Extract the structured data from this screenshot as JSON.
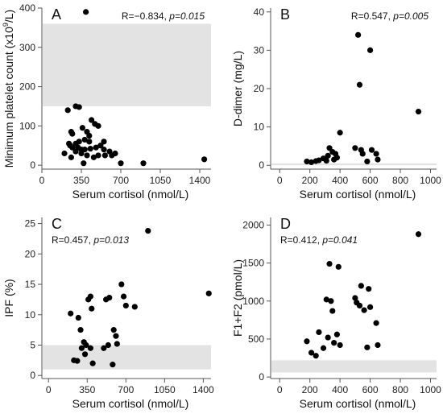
{
  "chart_data": [
    {
      "panel_label": "A",
      "type": "scatter",
      "ylabel_main": "Minimum platelet count (x10",
      "ylabel_sup": "9",
      "ylabel_tail": "/L)",
      "xlabel": "Serum cortisol (nmol/L)",
      "stat_r": "R=−0.834, ",
      "stat_p": "p=0.015",
      "xlim": [
        0,
        1500
      ],
      "ylim": [
        -10,
        400
      ],
      "xticks": [
        0,
        350,
        700,
        1050,
        1400
      ],
      "yticks": [
        0,
        100,
        200,
        300,
        400
      ],
      "reference_band": [
        150,
        360
      ],
      "points": [
        [
          390,
          390
        ],
        [
          300,
          150
        ],
        [
          330,
          148
        ],
        [
          230,
          140
        ],
        [
          260,
          85
        ],
        [
          270,
          80
        ],
        [
          360,
          95
        ],
        [
          440,
          115
        ],
        [
          470,
          105
        ],
        [
          500,
          100
        ],
        [
          400,
          85
        ],
        [
          420,
          75
        ],
        [
          380,
          65
        ],
        [
          330,
          60
        ],
        [
          300,
          55
        ],
        [
          250,
          50
        ],
        [
          320,
          45
        ],
        [
          350,
          40
        ],
        [
          430,
          42
        ],
        [
          480,
          45
        ],
        [
          520,
          50
        ],
        [
          550,
          40
        ],
        [
          600,
          35
        ],
        [
          650,
          30
        ],
        [
          560,
          25
        ],
        [
          460,
          20
        ],
        [
          400,
          25
        ],
        [
          350,
          30
        ],
        [
          300,
          35
        ],
        [
          270,
          45
        ],
        [
          240,
          55
        ],
        [
          200,
          30
        ],
        [
          260,
          20
        ],
        [
          700,
          5
        ],
        [
          900,
          5
        ],
        [
          1440,
          15
        ],
        [
          420,
          60
        ],
        [
          380,
          40
        ],
        [
          500,
          25
        ],
        [
          550,
          60
        ],
        [
          620,
          25
        ],
        [
          370,
          5
        ]
      ]
    },
    {
      "panel_label": "B",
      "type": "scatter",
      "ylabel_main": "D-dimer (mg/L)",
      "xlabel": "Serum cortisol (nmol/L)",
      "stat_r": "R=0.547, ",
      "stat_p": "p=0.005",
      "xlim": [
        -60,
        1040
      ],
      "ylim": [
        -1,
        41
      ],
      "xticks": [
        0,
        200,
        400,
        600,
        800,
        1000
      ],
      "yticks": [
        0,
        10,
        20,
        30,
        40
      ],
      "reference_band": [
        0,
        0.5
      ],
      "points": [
        [
          180,
          1
        ],
        [
          210,
          0.8
        ],
        [
          240,
          1.1
        ],
        [
          260,
          1.3
        ],
        [
          290,
          1.8
        ],
        [
          310,
          1.2
        ],
        [
          320,
          2.5
        ],
        [
          330,
          4.5
        ],
        [
          350,
          3.5
        ],
        [
          370,
          3
        ],
        [
          380,
          2
        ],
        [
          360,
          1.5
        ],
        [
          400,
          8.5
        ],
        [
          500,
          4.5
        ],
        [
          520,
          34
        ],
        [
          530,
          21
        ],
        [
          540,
          4
        ],
        [
          550,
          3
        ],
        [
          580,
          1
        ],
        [
          600,
          30
        ],
        [
          610,
          4
        ],
        [
          640,
          3
        ],
        [
          650,
          1.5
        ],
        [
          920,
          14
        ]
      ]
    },
    {
      "panel_label": "C",
      "type": "scatter",
      "ylabel_main": "IPF (%)",
      "xlabel": "Serum cortisol (nmol/L)",
      "stat_r": "R=0.457, ",
      "stat_p": "p=0.013",
      "xlim": [
        -60,
        1470
      ],
      "ylim": [
        -0.5,
        26
      ],
      "xticks": [
        0,
        350,
        700,
        1050,
        1400
      ],
      "yticks": [
        0,
        5,
        10,
        15,
        20,
        25
      ],
      "reference_band": [
        1,
        5
      ],
      "points": [
        [
          200,
          10.2
        ],
        [
          230,
          2.5
        ],
        [
          260,
          2.4
        ],
        [
          270,
          9.5
        ],
        [
          290,
          7.5
        ],
        [
          300,
          4.5
        ],
        [
          320,
          5.5
        ],
        [
          330,
          3.5
        ],
        [
          340,
          5
        ],
        [
          360,
          12.5
        ],
        [
          380,
          13
        ],
        [
          390,
          11
        ],
        [
          400,
          2
        ],
        [
          380,
          4.5
        ],
        [
          500,
          4.5
        ],
        [
          520,
          12.5
        ],
        [
          540,
          5
        ],
        [
          550,
          12.8
        ],
        [
          580,
          1.8
        ],
        [
          590,
          7.5
        ],
        [
          610,
          6.5
        ],
        [
          620,
          5.2
        ],
        [
          660,
          15
        ],
        [
          680,
          13
        ],
        [
          700,
          11.5
        ],
        [
          780,
          11.3
        ],
        [
          900,
          23.8
        ],
        [
          1450,
          13.5
        ]
      ]
    },
    {
      "panel_label": "D",
      "type": "scatter",
      "ylabel_main": "F1+F2 (pmol/L)",
      "xlabel": "Serum cortisol (nmol/L)",
      "stat_r": "R=0.412, ",
      "stat_p": "p=0.041",
      "xlim": [
        -60,
        1040
      ],
      "ylim": [
        -20,
        2100
      ],
      "xticks": [
        0,
        200,
        400,
        600,
        800,
        1000
      ],
      "yticks": [
        0,
        500,
        1000,
        1500,
        2000
      ],
      "reference_band": [
        60,
        220
      ],
      "points": [
        [
          180,
          470
        ],
        [
          210,
          320
        ],
        [
          240,
          280
        ],
        [
          260,
          590
        ],
        [
          290,
          380
        ],
        [
          310,
          1020
        ],
        [
          320,
          520
        ],
        [
          330,
          1490
        ],
        [
          340,
          1000
        ],
        [
          350,
          870
        ],
        [
          360,
          450
        ],
        [
          380,
          560
        ],
        [
          390,
          1450
        ],
        [
          400,
          420
        ],
        [
          500,
          1040
        ],
        [
          510,
          980
        ],
        [
          530,
          940
        ],
        [
          540,
          1200
        ],
        [
          560,
          880
        ],
        [
          580,
          390
        ],
        [
          590,
          1160
        ],
        [
          600,
          920
        ],
        [
          640,
          710
        ],
        [
          650,
          420
        ],
        [
          920,
          1880
        ]
      ]
    }
  ]
}
